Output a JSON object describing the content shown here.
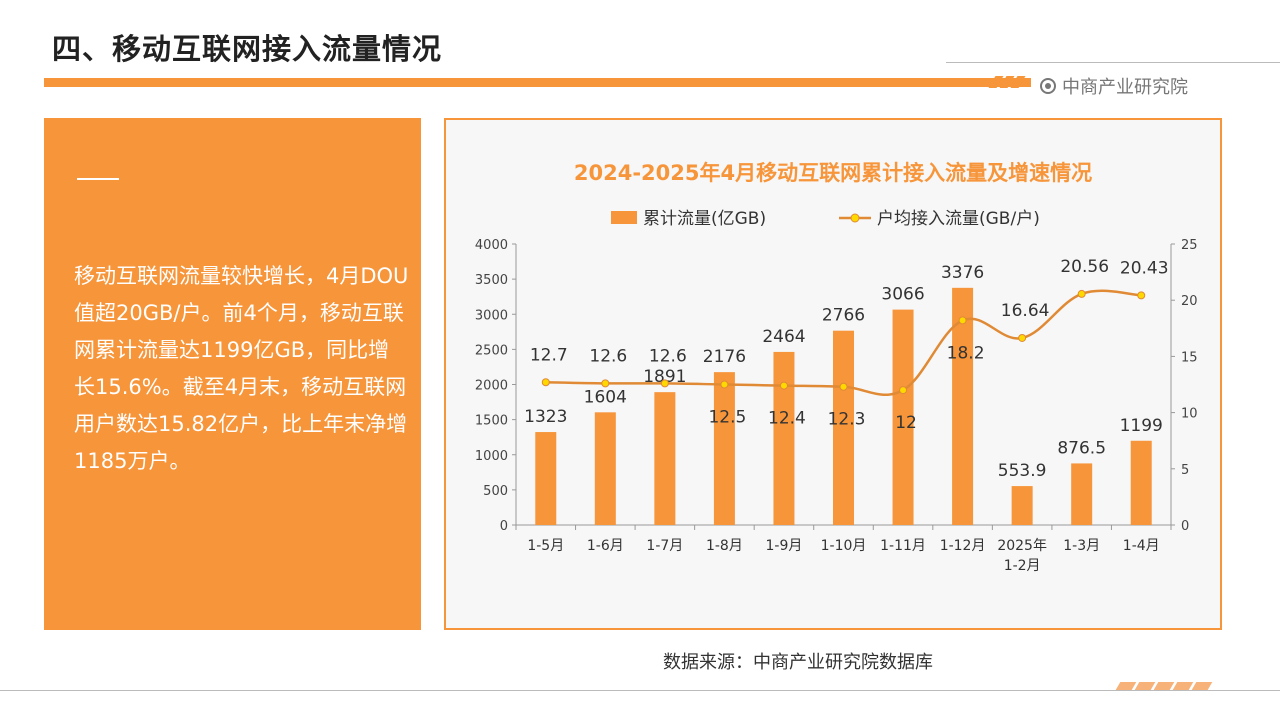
{
  "page": {
    "title": "四、移动互联网接入流量情况",
    "brand": "中商产业研究院",
    "left_text": "移动互联网流量较快增长，4月DOU值超20GB/户。前4个月，移动互联网累计流量达1199亿GB，同比增长15.6%。截至4月末，移动互联网用户数达15.82亿户，比上年末净增1185万户。",
    "source": "数据来源：中商产业研究院数据库"
  },
  "colors": {
    "accent": "#f7953a",
    "line": "#e08a35",
    "marker_fill": "#ffd800"
  },
  "chart_data": {
    "type": "bar",
    "title": "2024-2025年4月移动互联网累计接入流量及增速情况",
    "categories": [
      "1-5月",
      "1-6月",
      "1-7月",
      "1-8月",
      "1-9月",
      "1-10月",
      "1-11月",
      "1-12月",
      "2025年\n1-2月",
      "1-3月",
      "1-4月"
    ],
    "series": [
      {
        "name": "累计流量(亿GB)",
        "type": "bar",
        "axis": "left",
        "values": [
          1323,
          1604,
          1891,
          2176,
          2464,
          2766,
          3066,
          3376,
          553.9,
          876.5,
          1199
        ]
      },
      {
        "name": "户均接入流量(GB/户)",
        "type": "line",
        "axis": "right",
        "values": [
          12.7,
          12.6,
          12.6,
          12.5,
          12.4,
          12.3,
          12,
          18.2,
          16.64,
          20.56,
          20.43
        ]
      }
    ],
    "ylim_left": [
      0,
      4000
    ],
    "yticks_left": [
      0,
      500,
      1000,
      1500,
      2000,
      2500,
      3000,
      3500,
      4000
    ],
    "ylim_right": [
      0,
      25
    ],
    "yticks_right": [
      0,
      5,
      10,
      15,
      20,
      25
    ],
    "legend": "top",
    "grid": false
  }
}
